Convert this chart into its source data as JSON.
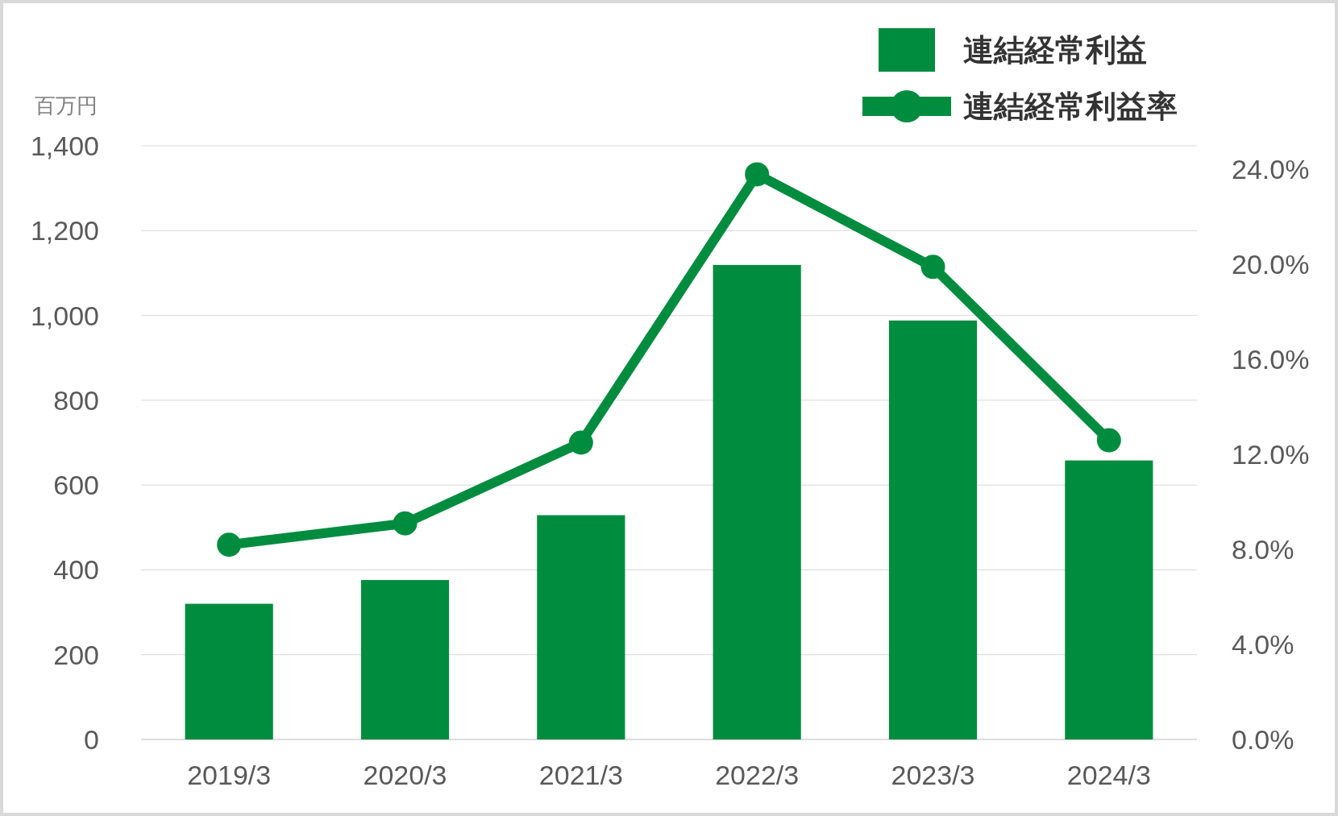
{
  "chart_data": {
    "type": "bar",
    "categories": [
      "2019/3",
      "2020/3",
      "2021/3",
      "2022/3",
      "2023/3",
      "2024/3"
    ],
    "series": [
      {
        "name": "連結経常利益",
        "color": "#008c3f",
        "values": [
          320,
          376,
          529,
          1119,
          988,
          658
        ]
      },
      {
        "name": "連結経常利益率",
        "type": "line",
        "axis": "y2",
        "color": "#008c3f",
        "values": [
          8.2,
          9.1,
          12.5,
          23.8,
          19.9,
          12.6
        ]
      }
    ],
    "ylabel": "百万円",
    "ylim": [
      0,
      1400
    ],
    "yticks": [
      0,
      {
        "value": 200,
        "label": "200"
      },
      {
        "value": 400,
        "label": "400"
      },
      {
        "value": 600,
        "label": "600"
      },
      {
        "value": 800,
        "label": "800"
      },
      {
        "value": 1000,
        "label": "1,000"
      },
      {
        "value": 1200,
        "label": "1,200"
      },
      {
        "value": 1400,
        "label": "1,400"
      }
    ],
    "y2lim": [
      0,
      25
    ],
    "y2ticks": [
      {
        "value": 0,
        "label": "0.0%"
      },
      {
        "value": 4,
        "label": "4.0%"
      },
      {
        "value": 8,
        "label": "8.0%"
      },
      {
        "value": 12,
        "label": "12.0%"
      },
      {
        "value": 16,
        "label": "16.0%"
      },
      {
        "value": 20,
        "label": "20.0%"
      },
      {
        "value": 24,
        "label": "24.0%"
      }
    ],
    "grid": "y",
    "legend": "top right",
    "marker": "circle",
    "line_style": "solid"
  }
}
